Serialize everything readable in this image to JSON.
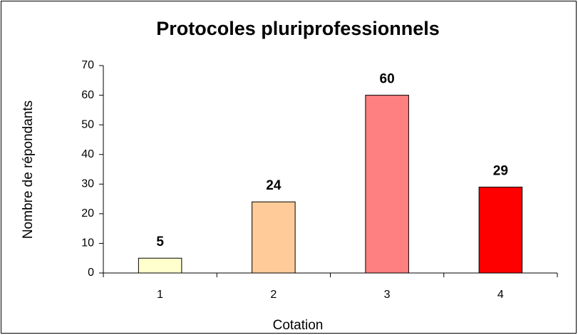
{
  "chart_data": {
    "type": "bar",
    "title": "Protocoles pluriprofessionnels",
    "x_label": "Cotation",
    "y_label": "Nombre de répondants",
    "categories": [
      "1",
      "2",
      "3",
      "4"
    ],
    "values": [
      5,
      24,
      60,
      29
    ],
    "colors": [
      "#ffffcc",
      "#ffcc99",
      "#ff8080",
      "#ff0000"
    ],
    "ylim": [
      0,
      70
    ],
    "yticks": [
      0,
      10,
      20,
      30,
      40,
      50,
      60,
      70
    ],
    "grid": false
  }
}
